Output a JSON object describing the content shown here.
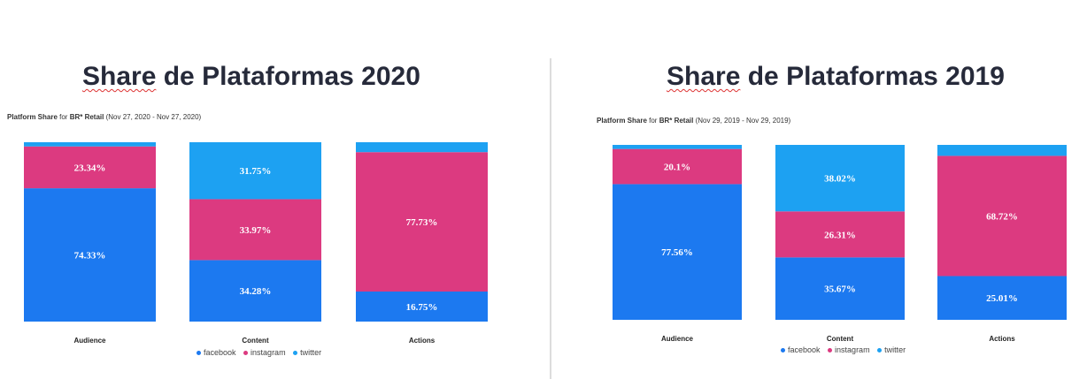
{
  "colors": {
    "facebook": "#1c79f0",
    "instagram": "#dc3a80",
    "twitter": "#1da1f2"
  },
  "legend": [
    {
      "key": "facebook",
      "label": "facebook"
    },
    {
      "key": "instagram",
      "label": "instagram"
    },
    {
      "key": "twitter",
      "label": "twitter"
    }
  ],
  "panels": [
    {
      "title_first": "Share",
      "title_rest": " de Plataformas 2020",
      "subtitle_pre": "Platform Share",
      "subtitle_for": " for ",
      "subtitle_brand": "BR* Retail",
      "subtitle_range": " (Nov 27, 2020 - Nov 27, 2020)"
    },
    {
      "title_first": "Share",
      "title_rest": " de Plataformas 2019",
      "subtitle_pre": "Platform Share",
      "subtitle_for": " for ",
      "subtitle_brand": "BR* Retail",
      "subtitle_range": " (Nov 29, 2019 - Nov 29, 2019)"
    }
  ],
  "chart_data": [
    {
      "type": "bar",
      "stacked": true,
      "title": "Platform Share for BR* Retail (Nov 27, 2020 - Nov 27, 2020)",
      "categories": [
        "Audience",
        "Content",
        "Actions"
      ],
      "ylim": [
        0,
        100
      ],
      "series": [
        {
          "name": "facebook",
          "values": [
            74.33,
            34.28,
            16.75
          ],
          "labels": [
            "74.33%",
            "34.28%",
            "16.75%"
          ]
        },
        {
          "name": "instagram",
          "values": [
            23.34,
            33.97,
            77.73
          ],
          "labels": [
            "23.34%",
            "33.97%",
            "77.73%"
          ]
        },
        {
          "name": "twitter",
          "values": [
            2.33,
            31.75,
            5.52
          ],
          "labels": [
            "",
            "31.75%",
            ""
          ]
        }
      ]
    },
    {
      "type": "bar",
      "stacked": true,
      "title": "Platform Share for BR* Retail (Nov 29, 2019 - Nov 29, 2019)",
      "categories": [
        "Audience",
        "Content",
        "Actions"
      ],
      "ylim": [
        0,
        100
      ],
      "series": [
        {
          "name": "facebook",
          "values": [
            77.56,
            35.67,
            25.01
          ],
          "labels": [
            "77.56%",
            "35.67%",
            "25.01%"
          ]
        },
        {
          "name": "instagram",
          "values": [
            20.1,
            26.31,
            68.72
          ],
          "labels": [
            "20.1%",
            "26.31%",
            "68.72%"
          ]
        },
        {
          "name": "twitter",
          "values": [
            2.34,
            38.02,
            6.27
          ],
          "labels": [
            "",
            "38.02%",
            ""
          ]
        }
      ]
    }
  ]
}
